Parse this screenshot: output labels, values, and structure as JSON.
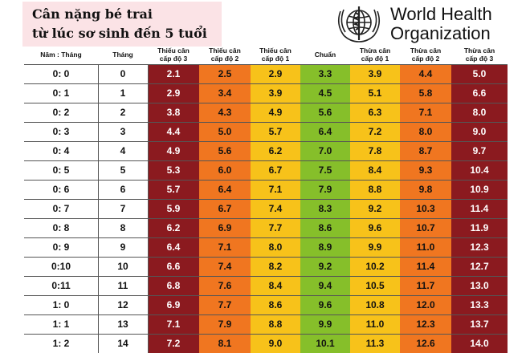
{
  "title": {
    "line1": "Cân nặng bé trai",
    "line2": "từ lúc sơ sinh đến 5 tuổi"
  },
  "logo": {
    "line1": "World Health",
    "line2": "Organization",
    "icon": "who-emblem-icon"
  },
  "colors": {
    "severe_under": "#8b1a1f",
    "moderate_under": "#f07620",
    "mild_under": "#f7c21a",
    "standard": "#86bf2a",
    "mild_over": "#f7c21a",
    "moderate_over": "#f07620",
    "severe_over": "#8b1a1f"
  },
  "headers": [
    "Năm : Tháng",
    "Tháng",
    "Thiếu cân\ncấp độ 3",
    "Thiếu cân\ncấp độ 2",
    "Thiếu cân\ncấp độ 1",
    "Chuẩn",
    "Thừa cân\ncấp độ 1",
    "Thừa cân\ncấp độ 2",
    "Thừa cân\ncấp độ 3"
  ],
  "rows": [
    [
      "0: 0",
      "0",
      "2.1",
      "2.5",
      "2.9",
      "3.3",
      "3.9",
      "4.4",
      "5.0"
    ],
    [
      "0: 1",
      "1",
      "2.9",
      "3.4",
      "3.9",
      "4.5",
      "5.1",
      "5.8",
      "6.6"
    ],
    [
      "0: 2",
      "2",
      "3.8",
      "4.3",
      "4.9",
      "5.6",
      "6.3",
      "7.1",
      "8.0"
    ],
    [
      "0: 3",
      "3",
      "4.4",
      "5.0",
      "5.7",
      "6.4",
      "7.2",
      "8.0",
      "9.0"
    ],
    [
      "0: 4",
      "4",
      "4.9",
      "5.6",
      "6.2",
      "7.0",
      "7.8",
      "8.7",
      "9.7"
    ],
    [
      "0: 5",
      "5",
      "5.3",
      "6.0",
      "6.7",
      "7.5",
      "8.4",
      "9.3",
      "10.4"
    ],
    [
      "0: 6",
      "6",
      "5.7",
      "6.4",
      "7.1",
      "7.9",
      "8.8",
      "9.8",
      "10.9"
    ],
    [
      "0: 7",
      "7",
      "5.9",
      "6.7",
      "7.4",
      "8.3",
      "9.2",
      "10.3",
      "11.4"
    ],
    [
      "0: 8",
      "8",
      "6.2",
      "6.9",
      "7.7",
      "8.6",
      "9.6",
      "10.7",
      "11.9"
    ],
    [
      "0: 9",
      "9",
      "6.4",
      "7.1",
      "8.0",
      "8.9",
      "9.9",
      "11.0",
      "12.3"
    ],
    [
      "0:10",
      "10",
      "6.6",
      "7.4",
      "8.2",
      "9.2",
      "10.2",
      "11.4",
      "12.7"
    ],
    [
      "0:11",
      "11",
      "6.8",
      "7.6",
      "8.4",
      "9.4",
      "10.5",
      "11.7",
      "13.0"
    ],
    [
      "1: 0",
      "12",
      "6.9",
      "7.7",
      "8.6",
      "9.6",
      "10.8",
      "12.0",
      "13.3"
    ],
    [
      "1: 1",
      "13",
      "7.1",
      "7.9",
      "8.8",
      "9.9",
      "11.0",
      "12.3",
      "13.7"
    ],
    [
      "1: 2",
      "14",
      "7.2",
      "8.1",
      "9.0",
      "10.1",
      "11.3",
      "12.6",
      "14.0"
    ]
  ]
}
